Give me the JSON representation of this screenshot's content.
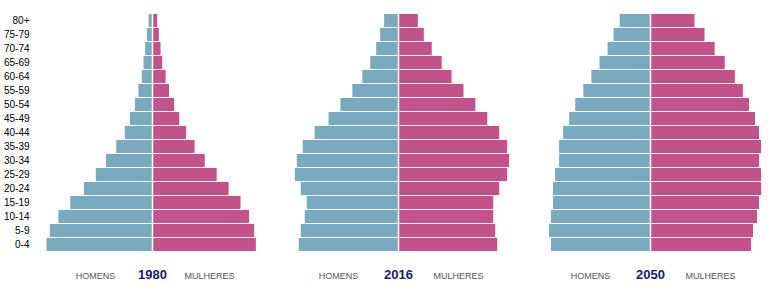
{
  "chart_data": [
    {
      "type": "bar",
      "orientation": "horizontal",
      "title": "1980",
      "categories": [
        "0-4",
        "5-9",
        "10-14",
        "15-19",
        "20-24",
        "25-29",
        "30-34",
        "35-39",
        "40-44",
        "45-49",
        "50-54",
        "55-59",
        "60-64",
        "65-69",
        "70-74",
        "75-79",
        "80+"
      ],
      "series": [
        {
          "name": "HOMENS",
          "color": "#7aaabf",
          "values": [
            -6.2,
            -6.0,
            -5.5,
            -4.8,
            -4.0,
            -3.3,
            -2.7,
            -2.1,
            -1.6,
            -1.3,
            -1.0,
            -0.8,
            -0.6,
            -0.5,
            -0.4,
            -0.3,
            -0.2
          ]
        },
        {
          "name": "MULHERES",
          "color": "#c4528a",
          "values": [
            6.1,
            6.0,
            5.7,
            5.2,
            4.5,
            3.8,
            3.1,
            2.5,
            2.0,
            1.6,
            1.3,
            1.0,
            0.8,
            0.6,
            0.5,
            0.4,
            0.3
          ]
        }
      ],
      "xlim": [
        -6.696,
        6.696
      ],
      "tick_labels": "y"
    },
    {
      "type": "bar",
      "orientation": "horizontal",
      "title": "2016",
      "categories": [
        "0-4",
        "5-9",
        "10-14",
        "15-19",
        "20-24",
        "25-29",
        "30-34",
        "35-39",
        "40-44",
        "45-49",
        "50-54",
        "55-59",
        "60-64",
        "65-69",
        "70-74",
        "75-79",
        "80+"
      ],
      "series": [
        {
          "name": "HOMENS",
          "color": "#7aaabf",
          "values": [
            -5.0,
            -4.9,
            -4.7,
            -4.6,
            -4.9,
            -5.2,
            -5.1,
            -4.8,
            -4.2,
            -3.5,
            -2.9,
            -2.3,
            -1.8,
            -1.4,
            -1.1,
            -0.9,
            -0.7
          ]
        },
        {
          "name": "MULHERES",
          "color": "#c4528a",
          "values": [
            5.0,
            4.9,
            4.8,
            4.8,
            5.1,
            5.5,
            5.6,
            5.5,
            5.1,
            4.5,
            3.9,
            3.3,
            2.7,
            2.2,
            1.7,
            1.3,
            1.0
          ]
        }
      ],
      "xlim": [
        -6.048,
        6.048
      ],
      "tick_labels": false
    },
    {
      "type": "bar",
      "orientation": "horizontal",
      "title": "2050",
      "categories": [
        "0-4",
        "5-9",
        "10-14",
        "15-19",
        "20-24",
        "25-29",
        "30-34",
        "35-39",
        "40-44",
        "45-49",
        "50-54",
        "55-59",
        "60-64",
        "65-69",
        "70-74",
        "75-79",
        "80+"
      ],
      "series": [
        {
          "name": "HOMENS",
          "color": "#7aaabf",
          "values": [
            -4.9,
            -5.0,
            -4.9,
            -4.8,
            -4.8,
            -4.7,
            -4.5,
            -4.5,
            -4.3,
            -4.0,
            -3.7,
            -3.3,
            -2.9,
            -2.5,
            -2.1,
            -1.8,
            -1.5
          ]
        },
        {
          "name": "MULHERES",
          "color": "#c4528a",
          "values": [
            5.0,
            5.1,
            5.3,
            5.4,
            5.5,
            5.5,
            5.4,
            5.5,
            5.4,
            5.2,
            4.9,
            4.6,
            4.2,
            3.7,
            3.2,
            2.7,
            2.2
          ]
        }
      ],
      "xlim": [
        -5.94,
        5.94
      ],
      "tick_labels": false
    }
  ]
}
